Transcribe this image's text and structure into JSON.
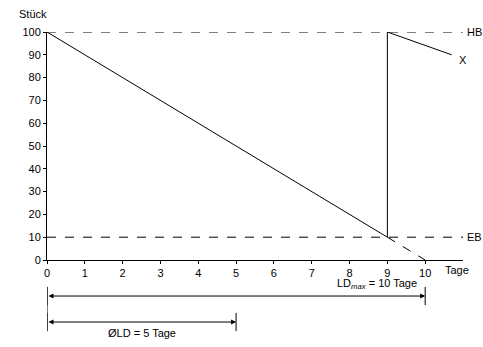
{
  "chart_data": {
    "type": "line",
    "y_label": "Stück",
    "x_label": "Tage",
    "xlim": [
      0,
      11
    ],
    "xticks": [
      0,
      1,
      2,
      3,
      4,
      5,
      6,
      7,
      8,
      9,
      10
    ],
    "ylim": [
      0,
      100
    ],
    "yticks": [
      0,
      10,
      20,
      30,
      40,
      50,
      60,
      70,
      80,
      90,
      100
    ],
    "grid": false,
    "color": "#000000",
    "series": [
      {
        "x": [
          0,
          9,
          9,
          10.7
        ],
        "values": [
          100,
          10,
          100,
          90
        ],
        "line_style": "solid",
        "end_label": "X"
      },
      {
        "x": [
          9,
          10
        ],
        "values": [
          10,
          0
        ],
        "line_style": "dashed"
      }
    ],
    "reference_lines": [
      {
        "value": 100,
        "label": "HB",
        "line_style": "dashed"
      },
      {
        "value": 10,
        "label": "EB",
        "line_style": "dashed"
      }
    ],
    "spans": [
      {
        "from": 0,
        "to": 10,
        "label": {
          "base": "LD",
          "subscript": "max",
          "text": " = 10 Tage"
        }
      },
      {
        "from": 0,
        "to": 5,
        "label": {
          "text": "ØLD = 5 Tage"
        }
      }
    ]
  }
}
